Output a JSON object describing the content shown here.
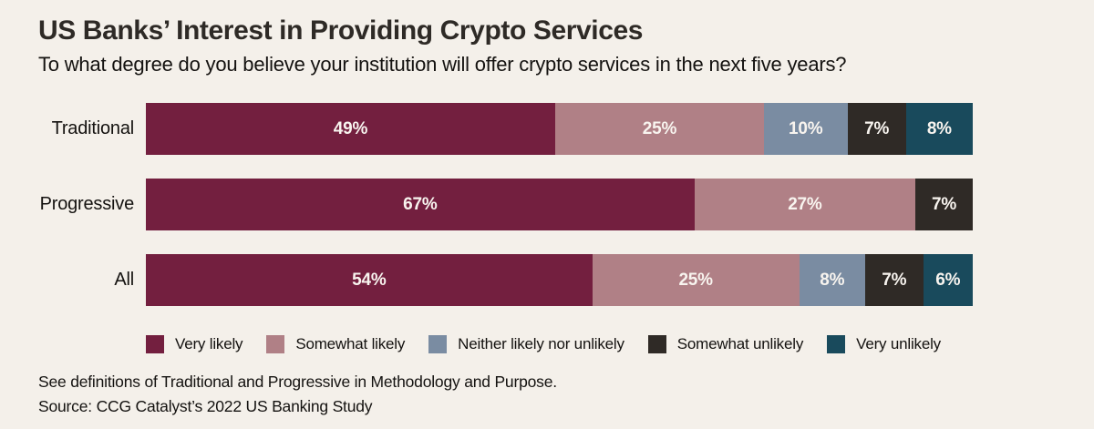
{
  "header": {
    "title": "US Banks’ Interest in Providing Crypto Services",
    "subtitle": "To what degree do you believe your institution will offer crypto services in the next five years?"
  },
  "footer": {
    "note": "See definitions of Traditional and Progressive in Methodology and Purpose.",
    "source": "Source: CCG Catalyst’s 2022 US Banking Study"
  },
  "colors": {
    "background": "#F4F0EA",
    "title_text": "#2E2A26",
    "bar_label_text": "#F8F4EF",
    "very_likely": "#731F3F",
    "somewhat_likely": "#B08086",
    "neither": "#7A8CA2",
    "somewhat_unlikely": "#2F2A26",
    "very_unlikely": "#194A5C"
  },
  "chart_data": {
    "type": "bar",
    "orientation": "horizontal",
    "stacked": true,
    "normalized_to_full_width": true,
    "title": "US Banks’ Interest in Providing Crypto Services",
    "subtitle": "To what degree do you believe your institution will offer crypto services in the next five years?",
    "categories": [
      "Traditional",
      "Progressive",
      "All"
    ],
    "series": [
      {
        "name": "Very likely",
        "color": "#731F3F",
        "values": [
          49,
          67,
          54
        ]
      },
      {
        "name": "Somewhat likely",
        "color": "#B08086",
        "values": [
          25,
          27,
          25
        ]
      },
      {
        "name": "Neither likely nor unlikely",
        "color": "#7A8CA2",
        "values": [
          10,
          0,
          8
        ]
      },
      {
        "name": "Somewhat unlikely",
        "color": "#2F2A26",
        "values": [
          7,
          7,
          7
        ]
      },
      {
        "name": "Very unlikely",
        "color": "#194A5C",
        "values": [
          8,
          0,
          6
        ]
      }
    ],
    "value_suffix": "%",
    "data_labels": "inside-center",
    "legend_position": "bottom",
    "grid": false,
    "axis_ticks": "none"
  }
}
